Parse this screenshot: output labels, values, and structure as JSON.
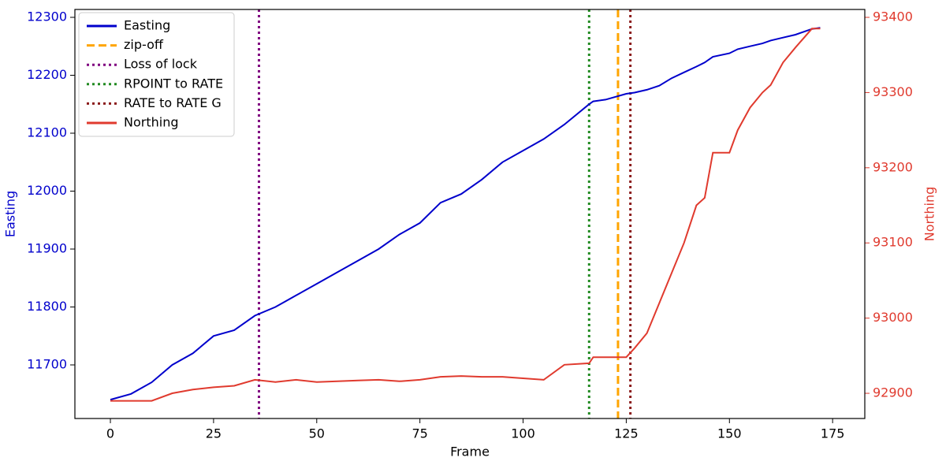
{
  "chart_data": {
    "type": "line",
    "x_label": "Frame",
    "y_label": "Easting",
    "y2_label": "Northing",
    "x": [
      0,
      5,
      10,
      15,
      20,
      25,
      30,
      35,
      40,
      45,
      50,
      55,
      60,
      65,
      70,
      75,
      80,
      85,
      90,
      95,
      100,
      105,
      110,
      116,
      117,
      120,
      125,
      127,
      130,
      133,
      136,
      139,
      142,
      144,
      146,
      150,
      152,
      155,
      158,
      160,
      163,
      166,
      170,
      172
    ],
    "series": [
      {
        "name": "Easting",
        "kind": "line",
        "color": "#0000cc",
        "axis": "y",
        "values": [
          11640,
          11650,
          11670,
          11700,
          11720,
          11750,
          11760,
          11785,
          11800,
          11820,
          11840,
          11860,
          11880,
          11900,
          11925,
          11945,
          11980,
          11995,
          12020,
          12050,
          12070,
          12090,
          12115,
          12150,
          12155,
          12158,
          12168,
          12170,
          12175,
          12182,
          12195,
          12205,
          12215,
          12222,
          12232,
          12238,
          12245,
          12250,
          12255,
          12260,
          12265,
          12270,
          12280,
          12282
        ]
      },
      {
        "name": "zip-off",
        "kind": "vline",
        "color": "#ffa500",
        "dash": "dashed",
        "xvalue": 123
      },
      {
        "name": "Loss of lock",
        "kind": "vline",
        "color": "#800080",
        "dash": "dotted",
        "xvalue": 36
      },
      {
        "name": "RPOINT to RATE",
        "kind": "vline",
        "color": "#228b22",
        "dash": "dotted",
        "xvalue": 116
      },
      {
        "name": "RATE to RATE G",
        "kind": "vline",
        "color": "#8b1a1a",
        "dash": "dotted",
        "xvalue": 126
      },
      {
        "name": "Northing",
        "kind": "line",
        "color": "#e03a2e",
        "axis": "y2",
        "values": [
          92890,
          92890,
          92890,
          92900,
          92905,
          92908,
          92910,
          92918,
          92915,
          92918,
          92915,
          92916,
          92917,
          92918,
          92916,
          92918,
          92922,
          92923,
          92922,
          92922,
          92920,
          92918,
          92938,
          92940,
          92948,
          92948,
          92948,
          92960,
          92980,
          93020,
          93060,
          93100,
          93150,
          93160,
          93220,
          93220,
          93250,
          93280,
          93300,
          93310,
          93340,
          93360,
          93385,
          93385
        ]
      }
    ],
    "xlim": [
      -8.6,
      182.8
    ],
    "xticks": [
      0,
      25,
      50,
      75,
      100,
      125,
      150,
      175
    ],
    "ylim": [
      11607.5,
      12313.6
    ],
    "yticks": [
      11700,
      11800,
      11900,
      12000,
      12100,
      12200,
      12300
    ],
    "y2lim": [
      92866.5,
      93410.5
    ],
    "y2ticks": [
      92900,
      93000,
      93100,
      93200,
      93300,
      93400
    ],
    "y_color": "#0000cc",
    "y2_color": "#e03a2e",
    "legend": "upper left"
  }
}
